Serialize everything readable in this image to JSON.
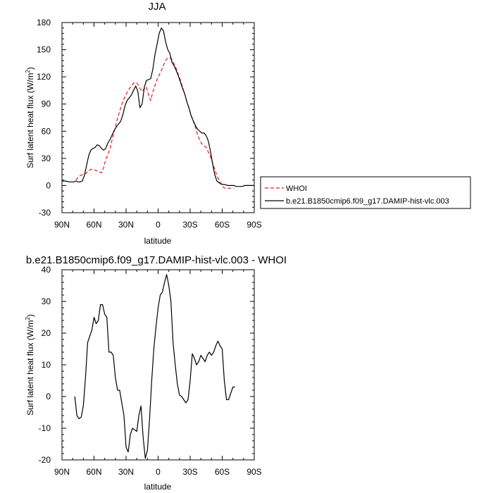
{
  "chart_data": [
    {
      "type": "line",
      "title": "JJA",
      "xlabel": "latitude",
      "ylabel": "Surf latent heat flux (W/m",
      "ylabel_sup": "2",
      "ylabel_close": ")",
      "xlim": [
        90,
        -90
      ],
      "ylim": [
        -30,
        180
      ],
      "x_ticks": [
        90,
        60,
        30,
        0,
        -30,
        -60,
        -90
      ],
      "x_tick_labels": [
        "90N",
        "60N",
        "30N",
        "0",
        "30S",
        "60S",
        "90S"
      ],
      "y_ticks": [
        -30,
        0,
        30,
        60,
        90,
        120,
        150,
        180
      ],
      "y_tick_labels": [
        "-30",
        "0",
        "30",
        "60",
        "90",
        "120",
        "150",
        "180"
      ],
      "grid": false,
      "legend_position": "right",
      "series": [
        {
          "name": "WHOI",
          "color": "#e41a1c",
          "dash": true,
          "x": [
            77,
            75,
            73,
            71,
            69,
            67,
            65,
            63,
            61,
            59,
            57,
            55,
            53,
            51,
            49,
            47,
            45,
            43,
            41,
            39,
            37,
            35,
            33,
            31,
            29,
            27,
            25,
            23,
            21,
            19,
            17,
            15,
            13,
            11,
            9,
            7,
            5,
            3,
            1,
            -1,
            -3,
            -5,
            -7,
            -9,
            -11,
            -13,
            -15,
            -17,
            -19,
            -21,
            -23,
            -25,
            -27,
            -29,
            -31,
            -33,
            -35,
            -37,
            -39,
            -41,
            -43,
            -45,
            -47,
            -49,
            -51,
            -53,
            -55,
            -57,
            -59,
            -61,
            -63,
            -65,
            -67,
            -69,
            -71
          ],
          "y": [
            6,
            9,
            11,
            12,
            12,
            14,
            16,
            18,
            18,
            17,
            16,
            15,
            14,
            20,
            29,
            34,
            41,
            51,
            60,
            70,
            78,
            86,
            93,
            98,
            103,
            107,
            110,
            113,
            114,
            112,
            107,
            104,
            107,
            109,
            100,
            94,
            103,
            110,
            117,
            122,
            127,
            133,
            138,
            141,
            141,
            139,
            134,
            129,
            122,
            116,
            108,
            101,
            92,
            85,
            77,
            71,
            64,
            56,
            50,
            46,
            44,
            42,
            37,
            32,
            25,
            18,
            11,
            6,
            1,
            -2,
            -3,
            -3,
            -3,
            -3,
            -3
          ]
        },
        {
          "name": "b.e21.B1850cmip6.f09_g17.DAMIP-hist-vlc.003",
          "color": "#000000",
          "dash": false,
          "x": [
            90,
            87,
            85,
            83,
            81,
            79,
            77,
            75,
            73,
            71,
            69,
            67,
            65,
            63,
            61,
            59,
            57,
            55,
            53,
            51,
            49,
            47,
            45,
            43,
            41,
            39,
            37,
            35,
            33,
            31,
            29,
            27,
            25,
            23,
            21,
            19,
            17,
            15,
            13,
            11,
            9,
            7,
            5,
            3,
            1,
            -1,
            -3,
            -5,
            -7,
            -9,
            -11,
            -13,
            -15,
            -17,
            -19,
            -21,
            -23,
            -25,
            -27,
            -29,
            -31,
            -33,
            -35,
            -37,
            -39,
            -41,
            -43,
            -45,
            -47,
            -49,
            -51,
            -53,
            -55,
            -57,
            -59,
            -61,
            -63,
            -65,
            -67,
            -69,
            -71,
            -73,
            -75,
            -77,
            -79,
            -81,
            -83,
            -85,
            -87,
            -90
          ],
          "y": [
            5,
            5,
            4.5,
            4,
            4,
            4,
            5,
            4,
            4,
            5,
            11,
            22,
            33,
            39,
            41,
            42,
            45,
            44,
            41,
            39,
            41,
            47,
            51,
            56,
            61,
            65,
            68,
            71,
            78,
            88,
            94,
            97,
            100,
            105,
            110,
            104,
            86,
            90,
            108,
            116,
            117,
            118,
            128,
            144,
            156,
            168,
            174,
            171,
            159,
            150,
            146,
            136,
            132,
            127,
            121,
            114,
            107,
            101,
            92,
            85,
            77,
            71,
            66,
            62,
            60,
            58,
            58,
            55,
            49,
            38,
            24,
            12,
            5,
            3,
            2,
            1,
            1,
            0,
            0,
            0,
            0,
            -1,
            -1,
            -1,
            -1,
            0,
            0,
            0,
            0,
            0
          ]
        }
      ]
    },
    {
      "type": "line",
      "title": "b.e21.B1850cmip6.f09_g17.DAMIP-hist-vlc.003 - WHOI",
      "xlabel": "latitude",
      "ylabel": "Surf latent heat flux (W/m",
      "ylabel_sup": "2",
      "ylabel_close": ")",
      "xlim": [
        90,
        -90
      ],
      "ylim": [
        -20,
        40
      ],
      "x_ticks": [
        90,
        60,
        30,
        0,
        -30,
        -60,
        -90
      ],
      "x_tick_labels": [
        "90N",
        "60N",
        "30N",
        "0",
        "30S",
        "60S",
        "90S"
      ],
      "y_ticks": [
        -20,
        -10,
        0,
        10,
        20,
        30,
        40
      ],
      "y_tick_labels": [
        "-20",
        "-10",
        "0",
        "10",
        "20",
        "30",
        "40"
      ],
      "grid": false,
      "series": [
        {
          "color": "#000000",
          "dash": false,
          "x": [
            78,
            76,
            74,
            72,
            70,
            68,
            66,
            64,
            62,
            60,
            58,
            56,
            54,
            52,
            50,
            48,
            46,
            44,
            42,
            40,
            38,
            36,
            34,
            32,
            30,
            28,
            26,
            24,
            22,
            20,
            18,
            16,
            14,
            12,
            10,
            8,
            6,
            4,
            2,
            0,
            -2,
            -4,
            -6,
            -8,
            -10,
            -12,
            -14,
            -16,
            -18,
            -20,
            -22,
            -24,
            -26,
            -28,
            -30,
            -32,
            -34,
            -36,
            -38,
            -40,
            -42,
            -44,
            -46,
            -48,
            -50,
            -52,
            -54,
            -56,
            -58,
            -60,
            -62,
            -64,
            -66,
            -68,
            -70,
            -72
          ],
          "y": [
            0,
            -6,
            -7,
            -6.5,
            -3,
            6,
            17,
            19,
            21,
            25,
            23,
            24,
            29,
            29,
            26,
            25,
            14,
            14,
            13,
            6,
            2,
            2,
            -2,
            -6,
            -16,
            -17.5,
            -12,
            -10,
            -10.5,
            -11,
            -6,
            -3,
            -13,
            -19.5,
            -17,
            -7,
            5,
            15,
            22,
            28,
            32,
            33,
            36,
            38.5,
            35,
            30,
            17,
            10,
            4,
            0.5,
            0,
            -1,
            -2,
            -1,
            5,
            13.5,
            12,
            10,
            11,
            13,
            12,
            11,
            13,
            14,
            13,
            14,
            16,
            17.5,
            16,
            15,
            5,
            -1,
            -1,
            1,
            3,
            3
          ]
        }
      ]
    }
  ]
}
